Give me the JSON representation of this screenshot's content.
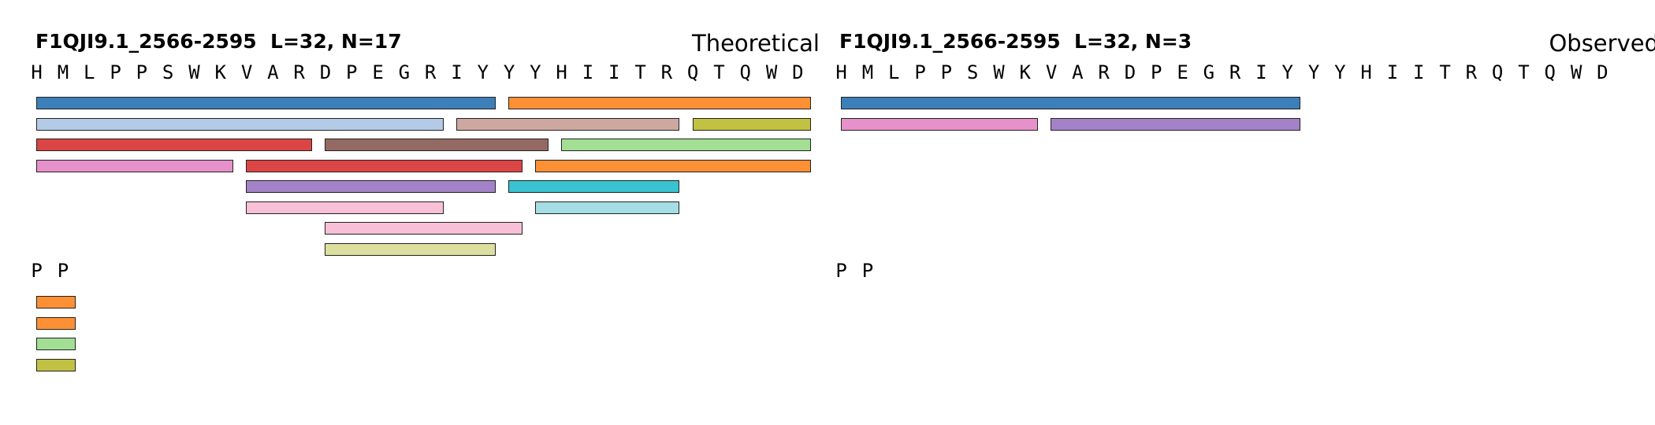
{
  "sequence": [
    "H",
    "M",
    "L",
    "P",
    "P",
    "S",
    "W",
    "K",
    "V",
    "A",
    "R",
    "D",
    "P",
    "E",
    "G",
    "R",
    "I",
    "Y",
    "Y",
    "Y",
    "H",
    "I",
    "I",
    "T",
    "R",
    "Q",
    "T",
    "Q",
    "W",
    "D"
  ],
  "colors": {
    "blue": "#3d7fb8",
    "orange": "#fd8f35",
    "light_blue": "#b4cbe8",
    "tan": "#cda8a1",
    "olive": "#c2c242",
    "red": "#dc4545",
    "brown": "#956963",
    "light_green": "#a2de93",
    "pink": "#e691c9",
    "purple": "#a482c8",
    "cyan": "#39c2d0",
    "light_pink": "#f8c0d6",
    "light_cyan": "#a5dde4",
    "khaki": "#dcdf9e"
  },
  "panels": [
    {
      "title": "F1QJI9.1_2566-2595  L=32, N=17",
      "mode": "Theoretical",
      "bars": [
        {
          "start": 0,
          "end": 17,
          "row": 0,
          "color": "#3d7fb8"
        },
        {
          "start": 18,
          "end": 29,
          "row": 0,
          "color": "#fd8f35"
        },
        {
          "start": 0,
          "end": 15,
          "row": 1,
          "color": "#b4cbe8"
        },
        {
          "start": 16,
          "end": 24,
          "row": 1,
          "color": "#cda8a1"
        },
        {
          "start": 25,
          "end": 29,
          "row": 1,
          "color": "#c2c242"
        },
        {
          "start": 0,
          "end": 10,
          "row": 2,
          "color": "#dc4545"
        },
        {
          "start": 11,
          "end": 19,
          "row": 2,
          "color": "#956963"
        },
        {
          "start": 20,
          "end": 29,
          "row": 2,
          "color": "#a2de93"
        },
        {
          "start": 0,
          "end": 7,
          "row": 3,
          "color": "#e691c9"
        },
        {
          "start": 8,
          "end": 18,
          "row": 3,
          "color": "#dc4545"
        },
        {
          "start": 19,
          "end": 29,
          "row": 3,
          "color": "#fd8f35"
        },
        {
          "start": 8,
          "end": 17,
          "row": 4,
          "color": "#a482c8"
        },
        {
          "start": 18,
          "end": 24,
          "row": 4,
          "color": "#39c2d0"
        },
        {
          "start": 8,
          "end": 15,
          "row": 5,
          "color": "#f8c0d6"
        },
        {
          "start": 19,
          "end": 24,
          "row": 5,
          "color": "#a5dde4"
        },
        {
          "start": 11,
          "end": 18,
          "row": 6,
          "color": "#f8c0d6"
        },
        {
          "start": 11,
          "end": 17,
          "row": 7,
          "color": "#dcdf9e"
        }
      ],
      "tail_letters": [
        "P",
        "P"
      ],
      "tail_bars": [
        {
          "row": 0,
          "color": "#fd8f35"
        },
        {
          "row": 1,
          "color": "#fd8f35"
        },
        {
          "row": 2,
          "color": "#a2de93"
        },
        {
          "row": 3,
          "color": "#c2c242"
        }
      ]
    },
    {
      "title": "F1QJI9.1_2566-2595  L=32, N=3",
      "mode": "Observed",
      "bars": [
        {
          "start": 0,
          "end": 17,
          "row": 0,
          "color": "#3d7fb8"
        },
        {
          "start": 0,
          "end": 7,
          "row": 1,
          "color": "#e691c9"
        },
        {
          "start": 8,
          "end": 17,
          "row": 1,
          "color": "#a482c8"
        }
      ],
      "tail_letters": [
        "P",
        "P"
      ],
      "tail_bars": []
    }
  ]
}
